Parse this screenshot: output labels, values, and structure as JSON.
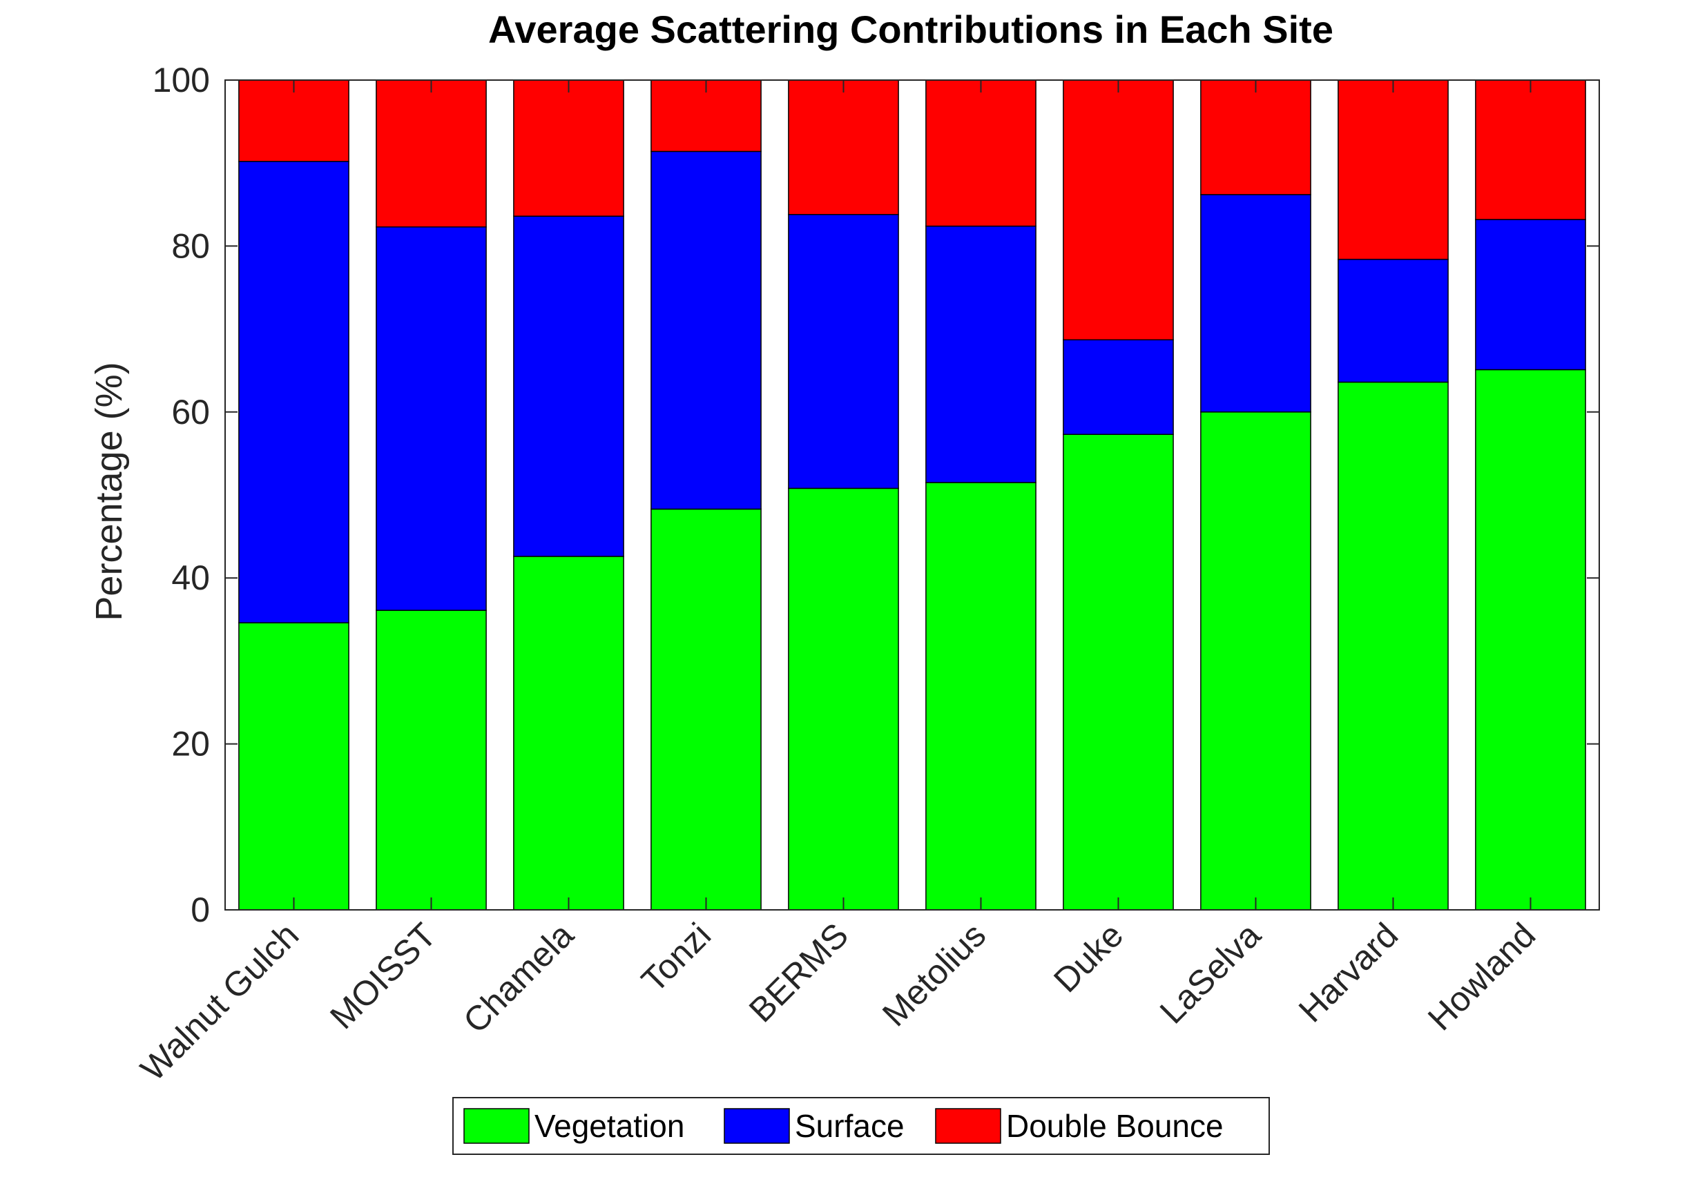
{
  "chart_data": {
    "type": "bar",
    "stacked": true,
    "title": "Average Scattering Contributions in Each Site",
    "xlabel": "",
    "ylabel": "Percentage (%)",
    "ylim": [
      0,
      100
    ],
    "yticks": [
      0,
      20,
      40,
      60,
      80,
      100
    ],
    "grid": false,
    "legend_position": "bottom",
    "categories": [
      "Walnut Gulch",
      "MOISST",
      "Chamela",
      "Tonzi",
      "BERMS",
      "Metolius",
      "Duke",
      "LaSelva",
      "Harvard",
      "Howland"
    ],
    "series": [
      {
        "name": "Vegetation",
        "color": "#00ff00",
        "values": [
          34.6,
          36.1,
          42.6,
          48.3,
          50.8,
          51.5,
          57.3,
          60.0,
          63.6,
          65.1
        ]
      },
      {
        "name": "Surface",
        "color": "#0000ff",
        "values": [
          55.6,
          46.2,
          41.0,
          43.1,
          33.0,
          30.9,
          11.4,
          26.2,
          14.8,
          18.1
        ]
      },
      {
        "name": "Double Bounce",
        "color": "#ff0000",
        "values": [
          9.8,
          17.7,
          16.4,
          8.6,
          16.2,
          17.6,
          31.3,
          13.8,
          21.6,
          16.8
        ]
      }
    ]
  }
}
